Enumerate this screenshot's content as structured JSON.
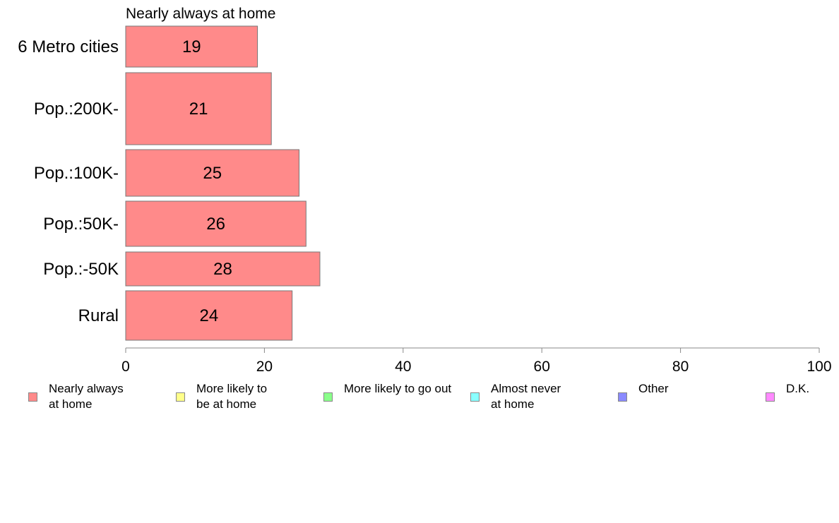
{
  "chart_data": {
    "type": "bar",
    "orientation": "horizontal",
    "title": "Nearly always at home",
    "categories": [
      "6 Metro cities",
      "Pop.:200K-",
      "Pop.:100K-",
      "Pop.:50K-",
      "Pop.:-50K",
      "Rural"
    ],
    "series": [
      {
        "name": "Nearly always at home",
        "color": "#ff8a8a",
        "values": [
          19,
          21,
          25,
          26,
          28,
          24
        ]
      }
    ],
    "data_labels": [
      "19",
      "21",
      "25",
      "26",
      "28",
      "24"
    ],
    "xlim": [
      0,
      100
    ],
    "x_ticks": [
      0,
      20,
      40,
      60,
      80,
      100
    ],
    "x_tick_labels": [
      "0",
      "20",
      "40",
      "60",
      "80",
      "100"
    ],
    "grid": false,
    "legend_position": "bottom"
  },
  "legend": [
    {
      "label": "Nearly always\nat home",
      "color": "#ff8a8a"
    },
    {
      "label": "More likely to\nbe at home",
      "color": "#ffff8a"
    },
    {
      "label": "More likely to go out",
      "color": "#8aff8a"
    },
    {
      "label": "Almost never\nat home",
      "color": "#8affff"
    },
    {
      "label": "Other",
      "color": "#8a8aff"
    },
    {
      "label": "D.K.",
      "color": "#ff8aff"
    }
  ]
}
